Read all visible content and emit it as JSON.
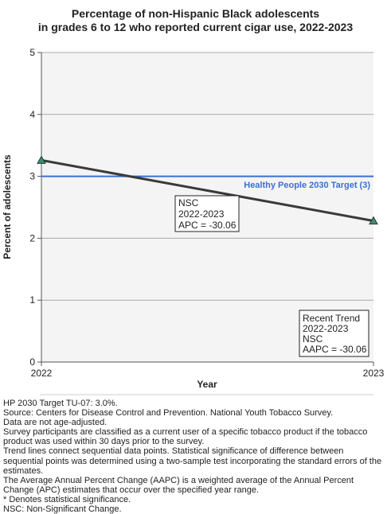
{
  "chart_data": {
    "type": "line",
    "title_lines": [
      "Percentage of non-Hispanic Black adolescents",
      "in grades 6 to 12 who reported current cigar use, 2022-2023"
    ],
    "xlabel": "Year",
    "ylabel": "Percent of adolescents",
    "x": [
      "2022",
      "2023"
    ],
    "ylim": [
      0,
      5
    ],
    "yticks": [
      "0",
      "1",
      "2",
      "3",
      "4",
      "5"
    ],
    "grid": true,
    "series": [
      {
        "values": [
          3.26,
          2.28
        ],
        "color": "#3a3a3a",
        "marker_color": "#3d8f6e"
      }
    ],
    "target": {
      "value": 3.0,
      "label": "Healthy People 2030 Target (3)",
      "color": "#3b6fd4"
    },
    "annotations": {
      "segment_box": [
        "NSC",
        "2022-2023",
        "APC = -30.06"
      ],
      "trend_box": [
        "Recent Trend",
        "2022-2023",
        "NSC",
        "AAPC = -30.06"
      ]
    }
  },
  "footnotes": [
    "HP 2030 Target TU-07: 3.0%.",
    "Source: Centers for Disease Control and Prevention. National Youth Tobacco Survey.",
    "Data are not age-adjusted.",
    "Survey participants are classified as a current user of a specific tobacco product if the tobacco",
    "product was used within 30 days prior to the survey.",
    "Trend lines connect sequential data points. Statistical significance of difference between",
    "sequential points was determined using a two-sample test incorporating the standard errors of the",
    "estimates.",
    "The Average Annual Percent Change (AAPC) is a weighted average of the Annual Percent",
    "Change (APC) estimates that occur over the specified year range.",
    "* Denotes statistical significance.",
    "NSC: Non-Significant Change."
  ]
}
